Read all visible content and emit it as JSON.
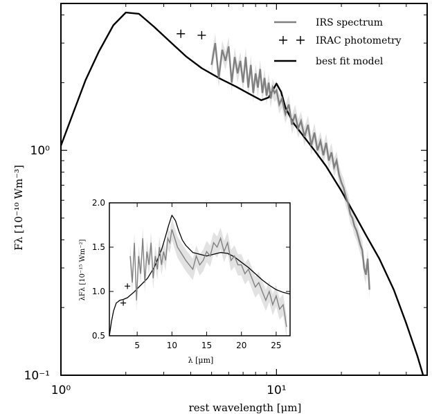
{
  "chart_data": [
    {
      "type": "line",
      "title": "",
      "xlabel": "rest wavelength [μm]",
      "ylabel": "Fλ [10⁻¹⁰ Wm⁻³]",
      "xscale": "log",
      "yscale": "log",
      "xlim": [
        1,
        50
      ],
      "ylim": [
        0.1,
        4.5
      ],
      "x_tick_labels": [
        "10⁰",
        "10¹"
      ],
      "x_ticks": [
        1,
        10
      ],
      "y_tick_labels": [
        "10⁻¹",
        "10⁰"
      ],
      "y_ticks": [
        0.1,
        1
      ],
      "grid": false,
      "legend": {
        "placement": "top-right",
        "entries": [
          {
            "name": "IRS spectrum",
            "color": "#808080",
            "marker": "line"
          },
          {
            "name": "IRAC photometry",
            "color": "#000000",
            "marker": "plus"
          },
          {
            "name": "best fit model",
            "color": "#000000",
            "marker": "line"
          }
        ]
      },
      "series": [
        {
          "name": "best fit model",
          "color": "#000000",
          "x": [
            1.0,
            1.15,
            1.3,
            1.5,
            1.75,
            2.0,
            2.3,
            2.7,
            3.2,
            3.8,
            4.5,
            5.5,
            6.5,
            7.5,
            8.5,
            9.2,
            9.7,
            10.0,
            10.5,
            11.0,
            12.0,
            13.5,
            15.0,
            17.0,
            20.0,
            23.0,
            26.0,
            30.0,
            35.0,
            40.0,
            45.0,
            50.0
          ],
          "y": [
            1.05,
            1.5,
            2.05,
            2.75,
            3.6,
            4.1,
            4.05,
            3.55,
            3.05,
            2.62,
            2.32,
            2.08,
            1.92,
            1.78,
            1.67,
            1.72,
            1.88,
            1.98,
            1.82,
            1.55,
            1.32,
            1.14,
            1.0,
            0.85,
            0.66,
            0.52,
            0.42,
            0.33,
            0.24,
            0.17,
            0.122,
            0.087
          ]
        },
        {
          "name": "IRS spectrum",
          "color": "#808080",
          "x": [
            5.0,
            5.2,
            5.4,
            5.6,
            5.8,
            6.0,
            6.2,
            6.4,
            6.6,
            6.8,
            7.0,
            7.2,
            7.4,
            7.6,
            7.8,
            8.0,
            8.2,
            8.4,
            8.6,
            8.8,
            9.0,
            9.2,
            9.4,
            9.6,
            9.8,
            10.0,
            10.3,
            10.6,
            11.0,
            11.4,
            11.8,
            12.2,
            12.6,
            13.0,
            13.5,
            14.0,
            14.5,
            15.0,
            15.5,
            16.0,
            16.5,
            17.0,
            17.5,
            18.0,
            18.5,
            19.0,
            19.5,
            20.0,
            20.5,
            21.0,
            21.5,
            22.0,
            22.5,
            23.0,
            23.5,
            24.0,
            24.5,
            25.0,
            25.5,
            26.0,
            26.5,
            27.0
          ],
          "y": [
            2.4,
            3.0,
            2.1,
            2.8,
            2.5,
            2.9,
            2.0,
            2.6,
            2.2,
            2.5,
            2.0,
            2.6,
            1.9,
            2.4,
            1.8,
            2.2,
            1.9,
            2.3,
            1.8,
            2.1,
            1.75,
            2.0,
            1.7,
            1.9,
            1.8,
            1.85,
            1.6,
            1.7,
            1.45,
            1.6,
            1.3,
            1.45,
            1.25,
            1.35,
            1.15,
            1.3,
            1.05,
            1.2,
            1.0,
            1.1,
            0.95,
            1.08,
            0.9,
            0.98,
            0.84,
            0.9,
            0.78,
            0.72,
            0.68,
            0.62,
            0.58,
            0.52,
            0.5,
            0.46,
            0.44,
            0.41,
            0.38,
            0.36,
            0.3,
            0.28,
            0.33,
            0.24
          ]
        },
        {
          "name": "IRAC photometry",
          "color": "#000000",
          "marker": "plus",
          "x": [
            3.6,
            4.5
          ],
          "y": [
            3.3,
            3.25
          ]
        }
      ]
    },
    {
      "type": "line",
      "title": "",
      "inset": true,
      "xlabel": "λ [μm]",
      "ylabel": "λFλ [10⁻¹⁵ Wm⁻²]",
      "xlim": [
        1,
        27
      ],
      "ylim": [
        0.5,
        2.0
      ],
      "x_ticks": [
        5,
        10,
        15,
        20,
        25
      ],
      "y_ticks": [
        0.5,
        1.0,
        1.5,
        2.0
      ],
      "x_tick_labels": [
        "5",
        "10",
        "15",
        "20",
        "25"
      ],
      "y_tick_labels": [
        "0.5",
        "1.0",
        "1.5",
        "2.0"
      ],
      "grid": false,
      "series": [
        {
          "name": "best fit model",
          "color": "#000000",
          "x": [
            1.0,
            1.3,
            1.6,
            2.0,
            2.5,
            3.0,
            3.6,
            4.5,
            5.5,
            6.5,
            7.5,
            8.5,
            9.0,
            9.5,
            10.0,
            10.5,
            11.0,
            11.5,
            12.0,
            13.0,
            14.0,
            15.0,
            16.0,
            17.0,
            18.0,
            19.0,
            20.0,
            21.0,
            22.0,
            23.0,
            24.0,
            25.0,
            26.0,
            27.0
          ],
          "y": [
            0.5,
            0.66,
            0.78,
            0.87,
            0.9,
            0.91,
            0.93,
            0.99,
            1.07,
            1.15,
            1.28,
            1.47,
            1.6,
            1.74,
            1.86,
            1.8,
            1.68,
            1.58,
            1.52,
            1.44,
            1.42,
            1.4,
            1.42,
            1.44,
            1.43,
            1.39,
            1.33,
            1.27,
            1.2,
            1.13,
            1.07,
            1.02,
            0.99,
            0.97
          ]
        },
        {
          "name": "IRS spectrum",
          "color": "#808080",
          "x": [
            4.0,
            4.3,
            4.6,
            4.9,
            5.2,
            5.5,
            5.8,
            6.1,
            6.4,
            6.7,
            7.0,
            7.3,
            7.6,
            7.9,
            8.2,
            8.5,
            8.8,
            9.1,
            9.4,
            9.7,
            10.0,
            10.4,
            10.8,
            11.2,
            11.6,
            12.0,
            12.5,
            13.0,
            13.5,
            14.0,
            14.5,
            15.0,
            15.5,
            16.0,
            16.5,
            17.0,
            17.5,
            18.0,
            18.5,
            19.0,
            19.5,
            20.0,
            20.5,
            21.0,
            21.5,
            22.0,
            22.5,
            23.0,
            23.5,
            24.0,
            24.5,
            25.0,
            25.5,
            26.0,
            26.5
          ],
          "y": [
            1.4,
            1.1,
            1.55,
            0.9,
            1.4,
            1.2,
            1.6,
            1.1,
            1.45,
            1.3,
            1.55,
            1.15,
            1.4,
            1.25,
            1.5,
            1.3,
            1.45,
            1.35,
            1.6,
            1.55,
            1.7,
            1.6,
            1.5,
            1.45,
            1.4,
            1.35,
            1.3,
            1.25,
            1.4,
            1.3,
            1.35,
            1.45,
            1.4,
            1.55,
            1.5,
            1.6,
            1.45,
            1.55,
            1.35,
            1.4,
            1.3,
            1.3,
            1.2,
            1.25,
            1.15,
            1.05,
            1.1,
            1.0,
            0.9,
            1.0,
            0.85,
            0.95,
            0.8,
            0.85,
            0.6
          ]
        },
        {
          "name": "IRAC photometry",
          "color": "#000000",
          "marker": "plus",
          "x": [
            3.0,
            3.6
          ],
          "y": [
            0.87,
            1.06
          ]
        }
      ]
    }
  ]
}
